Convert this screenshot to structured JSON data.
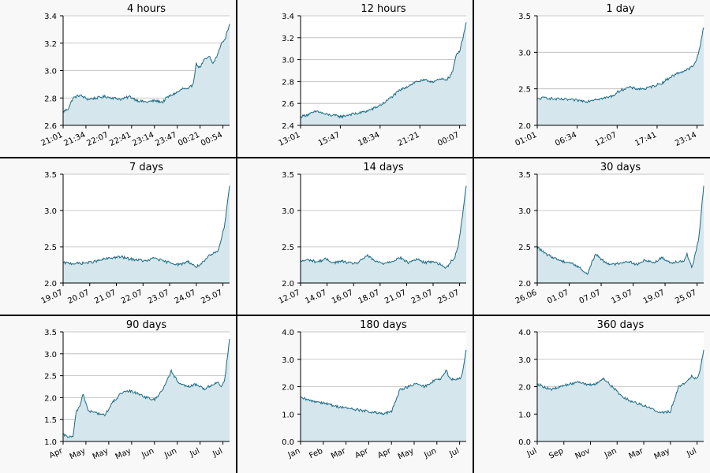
{
  "colors": {
    "line": "#1a6b85",
    "fill": "#d6e6ed",
    "grid": "#b8b8b8",
    "panel_bg": "#f8f8f8",
    "plot_bg": "#ffffff",
    "border": "#000000"
  },
  "chart_data": [
    {
      "type": "area",
      "title": "4 hours",
      "ylim": [
        2.6,
        3.4
      ],
      "yticks": [
        "2.6",
        "2.8",
        "3.0",
        "3.2",
        "3.4"
      ],
      "xticks": [
        "21:01",
        "21:34",
        "22:07",
        "22:41",
        "23:14",
        "23:47",
        "00:21",
        "00:54"
      ],
      "grid": true,
      "x": [
        0,
        0.03,
        0.06,
        0.1,
        0.15,
        0.2,
        0.25,
        0.3,
        0.35,
        0.4,
        0.45,
        0.5,
        0.55,
        0.6,
        0.62,
        0.65,
        0.7,
        0.72,
        0.75,
        0.78,
        0.8,
        0.82,
        0.85,
        0.88,
        0.9,
        0.93,
        0.95,
        0.97,
        1.0
      ],
      "values": [
        2.7,
        2.72,
        2.8,
        2.82,
        2.79,
        2.8,
        2.81,
        2.8,
        2.79,
        2.81,
        2.78,
        2.77,
        2.78,
        2.77,
        2.8,
        2.82,
        2.85,
        2.87,
        2.86,
        2.9,
        3.05,
        3.02,
        3.08,
        3.1,
        3.05,
        3.12,
        3.2,
        3.22,
        3.34
      ]
    },
    {
      "type": "area",
      "title": "12 hours",
      "ylim": [
        2.4,
        3.4
      ],
      "yticks": [
        "2.4",
        "2.6",
        "2.8",
        "3.0",
        "3.2",
        "3.4"
      ],
      "xticks": [
        "13:01",
        "15:47",
        "18:34",
        "21:21",
        "00:07"
      ],
      "grid": true,
      "x": [
        0,
        0.05,
        0.1,
        0.15,
        0.2,
        0.25,
        0.3,
        0.35,
        0.4,
        0.45,
        0.5,
        0.55,
        0.6,
        0.65,
        0.7,
        0.75,
        0.8,
        0.85,
        0.88,
        0.9,
        0.92,
        0.94,
        0.96,
        0.98,
        1.0
      ],
      "values": [
        2.48,
        2.5,
        2.53,
        2.5,
        2.49,
        2.48,
        2.5,
        2.51,
        2.53,
        2.56,
        2.6,
        2.66,
        2.72,
        2.76,
        2.8,
        2.81,
        2.8,
        2.82,
        2.82,
        2.84,
        2.9,
        3.05,
        3.08,
        3.2,
        3.34
      ]
    },
    {
      "type": "area",
      "title": "1 day",
      "ylim": [
        2.0,
        3.5
      ],
      "yticks": [
        "2.0",
        "2.5",
        "3.0",
        "3.5"
      ],
      "xticks": [
        "01:01",
        "06:34",
        "12:07",
        "17:41",
        "23:14"
      ],
      "grid": true,
      "x": [
        0,
        0.05,
        0.1,
        0.2,
        0.3,
        0.35,
        0.4,
        0.45,
        0.5,
        0.55,
        0.6,
        0.65,
        0.7,
        0.75,
        0.8,
        0.85,
        0.9,
        0.93,
        0.95,
        0.97,
        1.0
      ],
      "values": [
        2.36,
        2.38,
        2.36,
        2.35,
        2.33,
        2.36,
        2.37,
        2.4,
        2.48,
        2.52,
        2.5,
        2.5,
        2.54,
        2.58,
        2.66,
        2.72,
        2.76,
        2.8,
        2.85,
        3.0,
        3.34
      ]
    },
    {
      "type": "area",
      "title": "7 days",
      "ylim": [
        2.0,
        3.5
      ],
      "yticks": [
        "2.0",
        "2.5",
        "3.0",
        "3.5"
      ],
      "xticks": [
        "19.07",
        "20.07",
        "21.07",
        "22.07",
        "23.07",
        "24.07",
        "25.07"
      ],
      "grid": true,
      "x": [
        0,
        0.05,
        0.1,
        0.15,
        0.2,
        0.25,
        0.3,
        0.35,
        0.4,
        0.45,
        0.5,
        0.55,
        0.6,
        0.65,
        0.7,
        0.75,
        0.8,
        0.85,
        0.88,
        0.9,
        0.93,
        0.95,
        0.97,
        1.0
      ],
      "values": [
        2.28,
        2.27,
        2.27,
        2.28,
        2.3,
        2.33,
        2.35,
        2.36,
        2.33,
        2.32,
        2.3,
        2.35,
        2.3,
        2.28,
        2.25,
        2.3,
        2.22,
        2.3,
        2.38,
        2.4,
        2.45,
        2.6,
        2.8,
        3.34
      ]
    },
    {
      "type": "area",
      "title": "14 days",
      "ylim": [
        2.0,
        3.5
      ],
      "yticks": [
        "2.0",
        "2.5",
        "3.0",
        "3.5"
      ],
      "xticks": [
        "12.07",
        "14.07",
        "16.07",
        "18.07",
        "21.07",
        "23.07",
        "25.07"
      ],
      "grid": true,
      "x": [
        0,
        0.05,
        0.1,
        0.15,
        0.2,
        0.25,
        0.3,
        0.35,
        0.4,
        0.45,
        0.5,
        0.55,
        0.6,
        0.65,
        0.7,
        0.75,
        0.8,
        0.85,
        0.88,
        0.9,
        0.93,
        0.95,
        0.97,
        1.0
      ],
      "values": [
        2.3,
        2.32,
        2.29,
        2.33,
        2.28,
        2.3,
        2.27,
        2.28,
        2.38,
        2.3,
        2.27,
        2.3,
        2.35,
        2.28,
        2.33,
        2.28,
        2.3,
        2.25,
        2.2,
        2.28,
        2.35,
        2.5,
        2.8,
        3.34
      ]
    },
    {
      "type": "area",
      "title": "30 days",
      "ylim": [
        2.0,
        3.5
      ],
      "yticks": [
        "2.0",
        "2.5",
        "3.0",
        "3.5"
      ],
      "xticks": [
        "26.06",
        "01.07",
        "07.07",
        "13.07",
        "19.07",
        "25.07"
      ],
      "grid": true,
      "x": [
        0,
        0.05,
        0.1,
        0.15,
        0.2,
        0.25,
        0.3,
        0.35,
        0.4,
        0.45,
        0.5,
        0.55,
        0.6,
        0.65,
        0.7,
        0.75,
        0.8,
        0.85,
        0.88,
        0.9,
        0.93,
        0.95,
        0.97,
        1.0
      ],
      "values": [
        2.5,
        2.4,
        2.35,
        2.3,
        2.28,
        2.22,
        2.12,
        2.4,
        2.3,
        2.25,
        2.28,
        2.3,
        2.25,
        2.32,
        2.28,
        2.35,
        2.28,
        2.3,
        2.3,
        2.4,
        2.2,
        2.4,
        2.6,
        3.34
      ]
    },
    {
      "type": "area",
      "title": "90 days",
      "ylim": [
        1.0,
        3.5
      ],
      "yticks": [
        "1.0",
        "1.5",
        "2.0",
        "2.5",
        "3.0",
        "3.5"
      ],
      "xticks": [
        "Apr",
        "May",
        "May",
        "May",
        "Jun",
        "Jun",
        "Jul",
        "Jul"
      ],
      "grid": true,
      "x": [
        0,
        0.04,
        0.06,
        0.08,
        0.1,
        0.12,
        0.15,
        0.2,
        0.25,
        0.3,
        0.35,
        0.4,
        0.45,
        0.5,
        0.55,
        0.6,
        0.65,
        0.7,
        0.75,
        0.8,
        0.85,
        0.9,
        0.93,
        0.95,
        0.97,
        1.0
      ],
      "values": [
        1.15,
        1.1,
        1.12,
        1.7,
        1.8,
        2.1,
        1.7,
        1.65,
        1.6,
        1.9,
        2.1,
        2.15,
        2.1,
        2.0,
        1.95,
        2.2,
        2.6,
        2.3,
        2.25,
        2.3,
        2.2,
        2.3,
        2.35,
        2.25,
        2.4,
        3.34
      ]
    },
    {
      "type": "area",
      "title": "180 days",
      "ylim": [
        0.0,
        4.0
      ],
      "yticks": [
        "0.0",
        "1.0",
        "2.0",
        "3.0",
        "4.0"
      ],
      "xticks": [
        "Jan",
        "Feb",
        "Mar",
        "Apr",
        "Apr",
        "May",
        "Jun",
        "Jul"
      ],
      "grid": true,
      "x": [
        0,
        0.05,
        0.1,
        0.15,
        0.2,
        0.25,
        0.3,
        0.35,
        0.4,
        0.45,
        0.5,
        0.55,
        0.6,
        0.65,
        0.7,
        0.75,
        0.8,
        0.85,
        0.88,
        0.9,
        0.93,
        0.95,
        0.97,
        1.0
      ],
      "values": [
        1.6,
        1.5,
        1.45,
        1.4,
        1.3,
        1.25,
        1.2,
        1.15,
        1.1,
        1.05,
        1.0,
        1.1,
        1.9,
        2.0,
        2.1,
        2.0,
        2.2,
        2.3,
        2.6,
        2.3,
        2.25,
        2.3,
        2.3,
        3.34
      ]
    },
    {
      "type": "area",
      "title": "360 days",
      "ylim": [
        0.0,
        4.0
      ],
      "yticks": [
        "0.0",
        "1.0",
        "2.0",
        "3.0",
        "4.0"
      ],
      "xticks": [
        "Jul",
        "Sep",
        "Nov",
        "Jan",
        "Mar",
        "May",
        "Jul"
      ],
      "grid": true,
      "x": [
        0,
        0.04,
        0.08,
        0.12,
        0.16,
        0.2,
        0.25,
        0.3,
        0.35,
        0.4,
        0.45,
        0.5,
        0.55,
        0.6,
        0.65,
        0.7,
        0.75,
        0.8,
        0.85,
        0.9,
        0.93,
        0.95,
        0.97,
        1.0
      ],
      "values": [
        2.1,
        2.0,
        1.9,
        1.95,
        2.05,
        2.1,
        2.2,
        2.05,
        2.1,
        2.3,
        2.0,
        1.7,
        1.5,
        1.4,
        1.3,
        1.15,
        1.05,
        1.1,
        2.0,
        2.2,
        2.4,
        2.3,
        2.4,
        3.34
      ]
    }
  ]
}
